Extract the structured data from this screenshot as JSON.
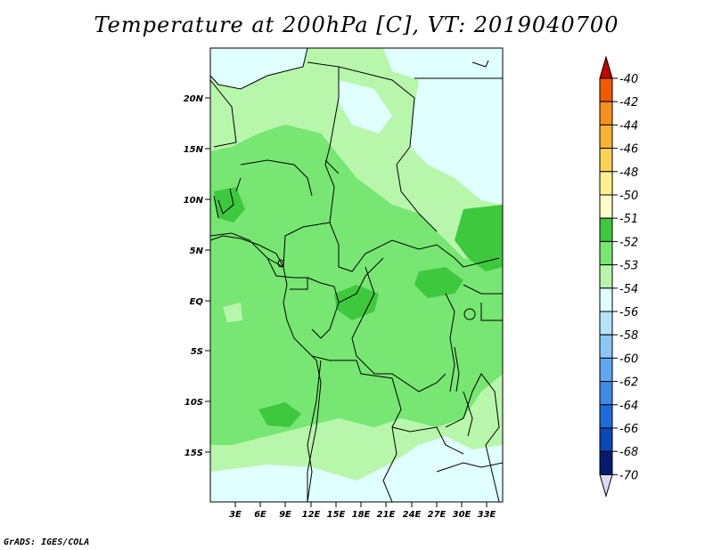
{
  "title": "Temperature at 200hPa [C], VT: 2019040700",
  "credit": "GrADS: IGES/COLA",
  "map": {
    "lat_ticks": [
      "20N",
      "15N",
      "10N",
      "5N",
      "EQ",
      "5S",
      "10S",
      "15S"
    ],
    "lon_ticks": [
      "3E",
      "6E",
      "9E",
      "12E",
      "15E",
      "18E",
      "21E",
      "24E",
      "27E",
      "30E",
      "33E"
    ]
  },
  "colorbar": {
    "levels": [
      {
        "label": "-40",
        "color": "#e41a00"
      },
      {
        "label": "-42",
        "color": "#f25a00"
      },
      {
        "label": "-44",
        "color": "#f7911c"
      },
      {
        "label": "-46",
        "color": "#f9b233"
      },
      {
        "label": "-48",
        "color": "#fbd254"
      },
      {
        "label": "-50",
        "color": "#fdf08c"
      },
      {
        "label": "-51",
        "color": "#fffec8"
      },
      {
        "label": "-52",
        "color": "#3ec83e"
      },
      {
        "label": "-53",
        "color": "#77e672"
      },
      {
        "label": "-54",
        "color": "#b8f6ac"
      },
      {
        "label": "-56",
        "color": "#e0ffff"
      },
      {
        "label": "-58",
        "color": "#b4e4fa"
      },
      {
        "label": "-60",
        "color": "#8cc6f5"
      },
      {
        "label": "-62",
        "color": "#60a8ee"
      },
      {
        "label": "-64",
        "color": "#3d8be6"
      },
      {
        "label": "-66",
        "color": "#1f6bd8"
      },
      {
        "label": "-68",
        "color": "#0d48b8"
      },
      {
        "label": "-70",
        "color": "#081a70"
      }
    ],
    "top_color": "#c80000",
    "bottom_color": "#dcdcf5"
  }
}
